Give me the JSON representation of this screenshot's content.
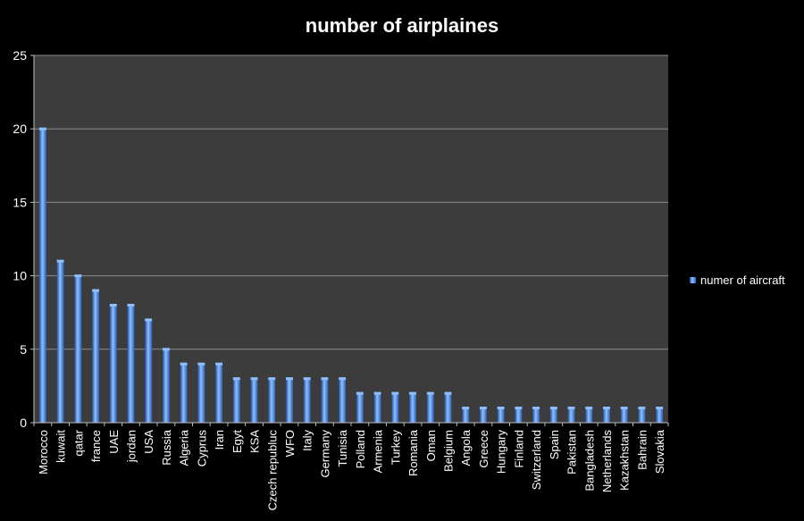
{
  "chart_data": {
    "type": "bar",
    "title": "number of airplaines",
    "xlabel": "",
    "ylabel": "",
    "ylim": [
      0,
      25
    ],
    "yticks": [
      0,
      5,
      10,
      15,
      20,
      25
    ],
    "grid": true,
    "legend_position": "right",
    "categories": [
      "Morocco",
      "kuwait",
      "qatar",
      "france",
      "UAE",
      "jordan",
      "USA",
      "Russia",
      "Algeria",
      "Cyprus",
      "Iran",
      "Egyt",
      "KSA",
      "Czech republuc",
      "WFO",
      "Italy",
      "Germany",
      "Tunisia",
      "Polland",
      "Armenia",
      "Turkey",
      "Romania",
      "Oman",
      "Belgium",
      "Angola",
      "Greece",
      "Hungary",
      "Finland",
      "Switzerland",
      "Spain",
      "Pakistan",
      "Bangladesh",
      "Netherlands",
      "Kazakhstan",
      "Bahrain",
      "Slovakia"
    ],
    "series": [
      {
        "name": "numer of aircraft",
        "color": "#4f8fe6",
        "values": [
          20,
          11,
          10,
          9,
          8,
          8,
          7,
          5,
          4,
          4,
          4,
          3,
          3,
          3,
          3,
          3,
          3,
          3,
          2,
          2,
          2,
          2,
          2,
          2,
          1,
          1,
          1,
          1,
          1,
          1,
          1,
          1,
          1,
          1,
          1,
          1
        ]
      }
    ],
    "colors": {
      "page_background": "#000000",
      "plot_background": "#3c3c3c",
      "gridline": "#8c8c8c",
      "text": "#ffffff",
      "bar_light": "#8ec0ff",
      "bar_dark": "#1e4f9e"
    }
  }
}
